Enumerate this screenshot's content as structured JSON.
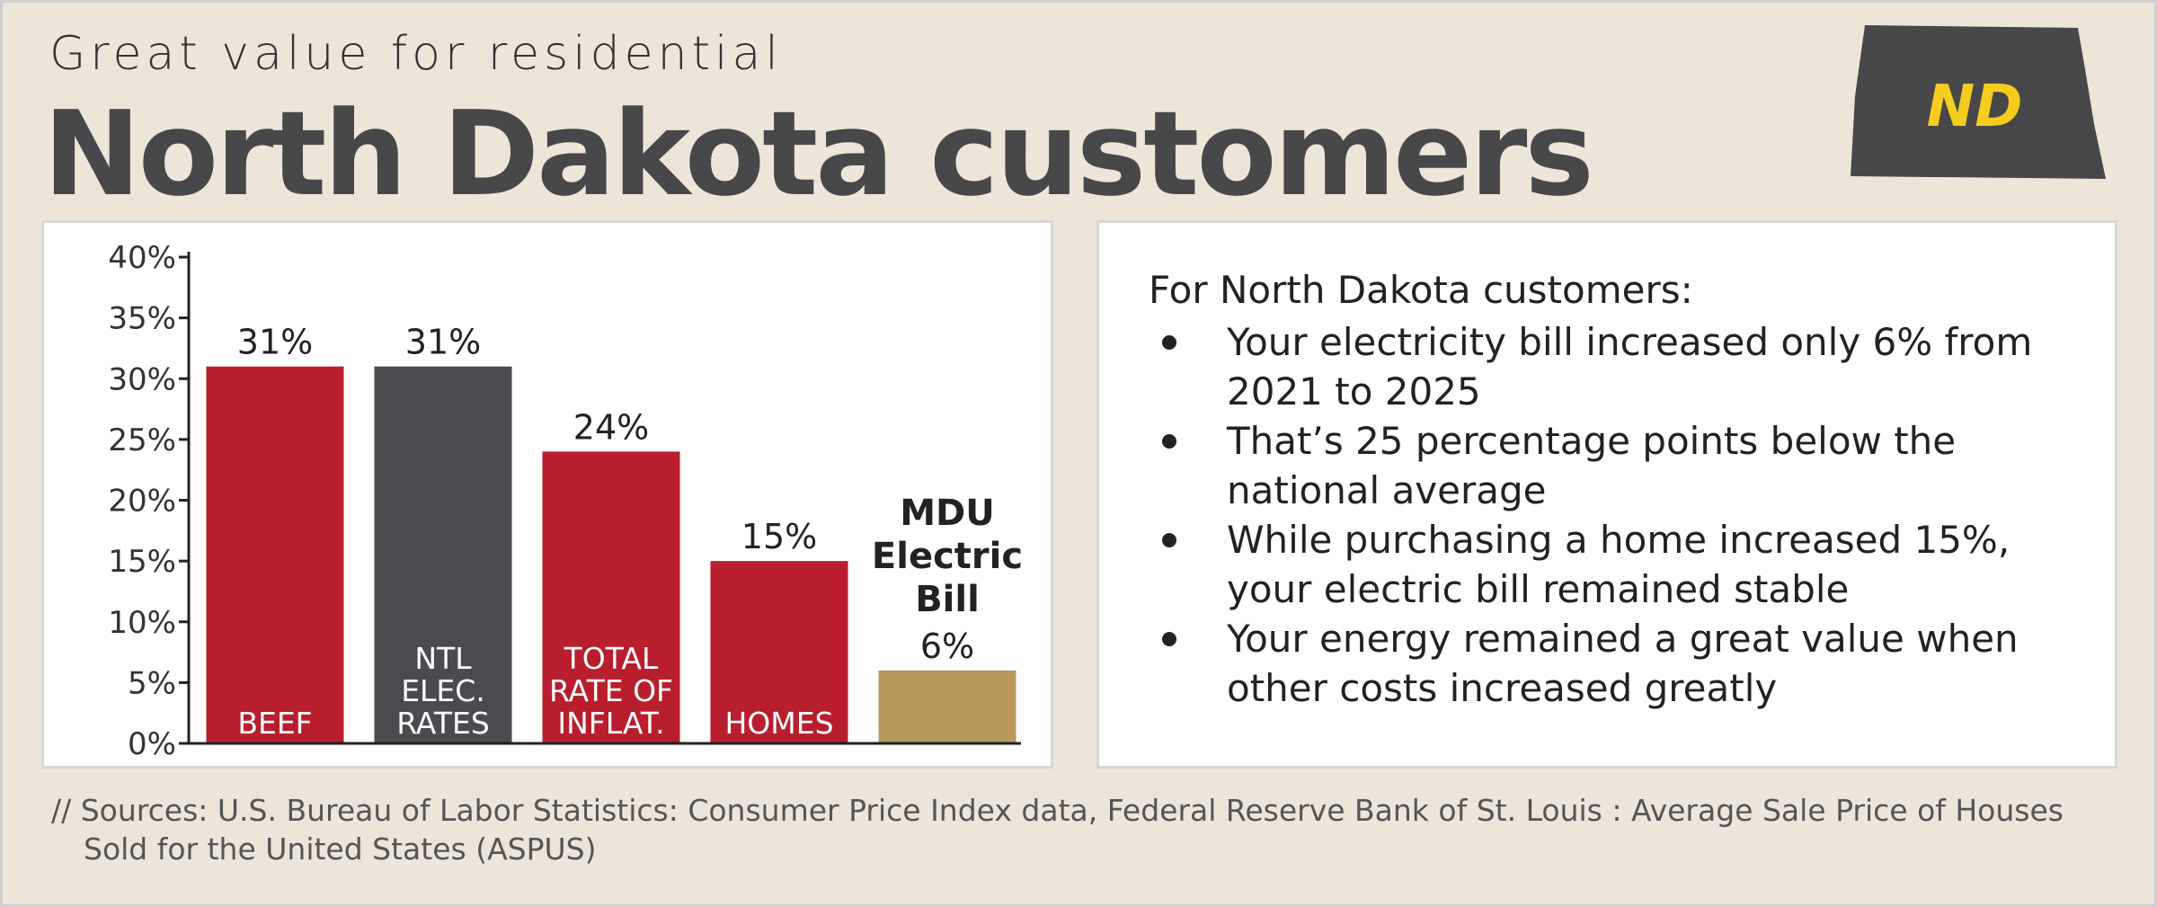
{
  "header": {
    "kicker": "Great value for residential",
    "title": "North Dakota customers",
    "badge": "ND"
  },
  "chart_data": {
    "type": "bar",
    "categories": [
      "BEEF",
      "NTL ELEC. RATES",
      "TOTAL RATE OF INFLAT.",
      "HOMES",
      "MDU Electric Bill"
    ],
    "values": [
      31,
      31,
      24,
      15,
      6
    ],
    "value_labels": [
      "31%",
      "31%",
      "24%",
      "15%",
      "6%"
    ],
    "colors": [
      "#b81e2d",
      "#4a4b4f",
      "#b81e2d",
      "#b81e2d",
      "#b8975a"
    ],
    "ylim": [
      0,
      40
    ],
    "yticks": [
      {
        "value": 0,
        "label": "0%"
      },
      {
        "value": 5,
        "label": "5%"
      },
      {
        "value": 10,
        "label": "10%"
      },
      {
        "value": 15,
        "label": "15%"
      },
      {
        "value": 20,
        "label": "20%"
      },
      {
        "value": 25,
        "label": "25%"
      },
      {
        "value": 30,
        "label": "30%"
      },
      {
        "value": 35,
        "label": "35%"
      },
      {
        "value": 40,
        "label": "40%"
      }
    ],
    "grid": false
  },
  "notes": {
    "intro": "For North Dakota customers:",
    "bullets": [
      "Your electricity bill increased only 6% from 2021 to 2025",
      "That’s 25 percentage points below the national average",
      "While purchasing a home increased 15%, your electric bill remained stable",
      "Your energy remained a great value when other costs increased greatly"
    ]
  },
  "sources": "// Sources: U.S. Bureau of Labor Statistics: Consumer Price Index data, Federal Reserve Bank of St. Louis : Average Sale Price of Houses Sold for the United States (ASPUS)"
}
